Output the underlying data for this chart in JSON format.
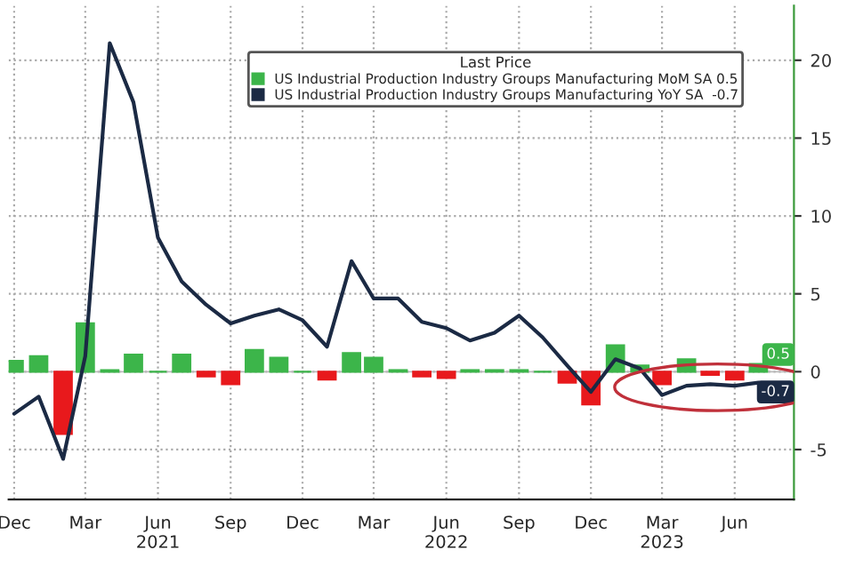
{
  "chart_data": {
    "type": "bar",
    "legend_title": "Last Price",
    "x": [
      "2020-12",
      "2021-01",
      "2021-02",
      "2021-03",
      "2021-04",
      "2021-05",
      "2021-06",
      "2021-07",
      "2021-08",
      "2021-09",
      "2021-10",
      "2021-11",
      "2021-12",
      "2022-01",
      "2022-02",
      "2022-03",
      "2022-04",
      "2022-05",
      "2022-06",
      "2022-07",
      "2022-08",
      "2022-09",
      "2022-10",
      "2022-11",
      "2022-12",
      "2023-01",
      "2023-02",
      "2023-03",
      "2023-04",
      "2023-05",
      "2023-06",
      "2023-07"
    ],
    "series": [
      {
        "name": "US Industrial Production Industry Groups Manufacturing MoM SA 0.5",
        "color": "#3cb54a",
        "colors": [
          "#3cb54a",
          "#3cb54a",
          "#e8191c",
          "#3cb54a",
          "#3cb54a",
          "#3cb54a",
          "#3cb54a",
          "#3cb54a",
          "#e8191c",
          "#e8191c",
          "#3cb54a",
          "#3cb54a",
          "#3cb54a",
          "#e8191c",
          "#3cb54a",
          "#3cb54a",
          "#3cb54a",
          "#e8191c",
          "#e8191c",
          "#3cb54a",
          "#3cb54a",
          "#3cb54a",
          "#3cb54a",
          "#e8191c",
          "#e8191c",
          "#3cb54a",
          "#3cb54a",
          "#e8191c",
          "#3cb54a",
          "#e8191c",
          "#e8191c",
          "#3cb54a"
        ],
        "values": [
          0.7,
          1.0,
          -4.0,
          3.1,
          0.1,
          1.1,
          0.0,
          1.1,
          -0.3,
          -0.8,
          1.4,
          0.9,
          0.0,
          -0.5,
          1.2,
          0.9,
          0.1,
          -0.3,
          -0.4,
          0.1,
          0.1,
          0.1,
          0.0,
          -0.7,
          -2.1,
          1.7,
          0.4,
          -0.8,
          0.8,
          -0.2,
          -0.5,
          0.5
        ]
      },
      {
        "name": "US Industrial Production Industry Groups Manufacturing YoY SA  -0.7",
        "type": "line",
        "color": "#1b2a44",
        "values": [
          -2.7,
          -1.6,
          -5.6,
          1.0,
          21.1,
          17.3,
          8.6,
          5.8,
          4.3,
          3.1,
          3.6,
          4.0,
          3.3,
          1.6,
          7.1,
          4.7,
          4.7,
          3.2,
          2.8,
          2.0,
          2.5,
          3.6,
          2.2,
          0.4,
          -1.3,
          0.8,
          0.2,
          -1.5,
          -0.9,
          -0.8,
          -0.9,
          -0.7
        ]
      }
    ],
    "xlim": [
      "2020-11-24",
      "2023-08-15"
    ],
    "xticks": [
      {
        "value": "2020-12",
        "label": "Dec"
      },
      {
        "value": "2021-03",
        "label": "Mar"
      },
      {
        "value": "2021-06",
        "label": "Jun\n2021"
      },
      {
        "value": "2021-09",
        "label": "Sep"
      },
      {
        "value": "2021-12",
        "label": "Dec"
      },
      {
        "value": "2022-03",
        "label": "Mar"
      },
      {
        "value": "2022-06",
        "label": "Jun\n2022"
      },
      {
        "value": "2022-09",
        "label": "Sep"
      },
      {
        "value": "2022-12",
        "label": "Dec"
      },
      {
        "value": "2023-03",
        "label": "Mar\n2023"
      },
      {
        "value": "2023-06",
        "label": "Jun"
      }
    ],
    "ylim": [
      -8.2,
      23.5
    ],
    "yticks": [
      -5,
      0,
      5,
      10,
      15,
      20
    ],
    "grid": true,
    "legend": "top",
    "annotations": [
      {
        "text": "0.5",
        "x": "2023-07",
        "y": 0.5
      },
      {
        "text": "-0.7",
        "x": "2023-07",
        "y": -0.7
      }
    ]
  }
}
